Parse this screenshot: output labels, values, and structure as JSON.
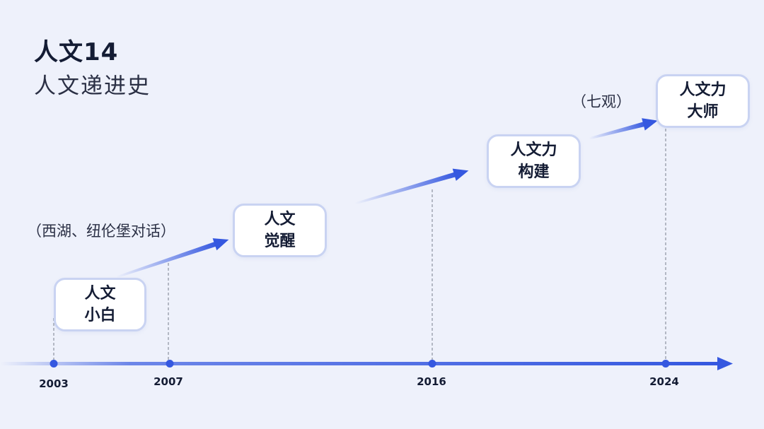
{
  "header": {
    "title": "人文14",
    "subtitle": "人文递进史"
  },
  "colors": {
    "background": "#eef1fb",
    "accent": "#3558e0",
    "box_border": "#c9d3f2",
    "text": "#141c34"
  },
  "timeline": {
    "years": [
      "2003",
      "2007",
      "2016",
      "2024"
    ]
  },
  "stages": [
    {
      "line1": "人文",
      "line2": "小白"
    },
    {
      "line1": "人文",
      "line2": "觉醒"
    },
    {
      "line1": "人文力",
      "line2": "构建"
    },
    {
      "line1": "人文力",
      "line2": "大师"
    }
  ],
  "notes": {
    "xihu": "（西湖、纽伦堡对话）",
    "qiguan": "（七观）"
  }
}
